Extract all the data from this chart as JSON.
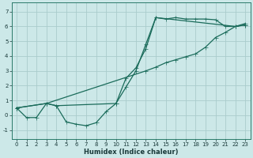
{
  "xlabel": "Humidex (Indice chaleur)",
  "bg_color": "#cce8e8",
  "grid_color": "#aacccc",
  "line_color": "#1a6b5a",
  "xlim": [
    -0.5,
    23.5
  ],
  "ylim": [
    -1.6,
    7.6
  ],
  "xticks": [
    0,
    1,
    2,
    3,
    4,
    5,
    6,
    7,
    8,
    9,
    10,
    11,
    12,
    13,
    14,
    15,
    16,
    17,
    18,
    19,
    20,
    21,
    22,
    23
  ],
  "yticks": [
    -1,
    0,
    1,
    2,
    3,
    4,
    5,
    6,
    7
  ],
  "line1_x": [
    0,
    1,
    2,
    3,
    4,
    5,
    6,
    7,
    8,
    9,
    10,
    11,
    12,
    13,
    14,
    15,
    16,
    17,
    18,
    19,
    20,
    21,
    22,
    23
  ],
  "line1_y": [
    0.5,
    -0.15,
    -0.15,
    0.8,
    0.65,
    -0.45,
    -0.6,
    -0.7,
    -0.5,
    0.25,
    0.8,
    1.9,
    3.0,
    4.8,
    6.6,
    6.5,
    6.6,
    6.5,
    6.5,
    6.5,
    6.45,
    6.0,
    6.0,
    6.1
  ],
  "line2_x": [
    0,
    3,
    4,
    10,
    11,
    12,
    13,
    14,
    22,
    23
  ],
  "line2_y": [
    0.5,
    0.8,
    0.65,
    0.8,
    2.5,
    3.2,
    4.5,
    6.6,
    6.0,
    6.1
  ],
  "line3_x": [
    0,
    3,
    13,
    14,
    15,
    16,
    17,
    18,
    19,
    20,
    21,
    22,
    23
  ],
  "line3_y": [
    0.5,
    0.8,
    3.0,
    3.25,
    3.55,
    3.75,
    3.95,
    4.15,
    4.6,
    5.25,
    5.6,
    6.0,
    6.2
  ]
}
